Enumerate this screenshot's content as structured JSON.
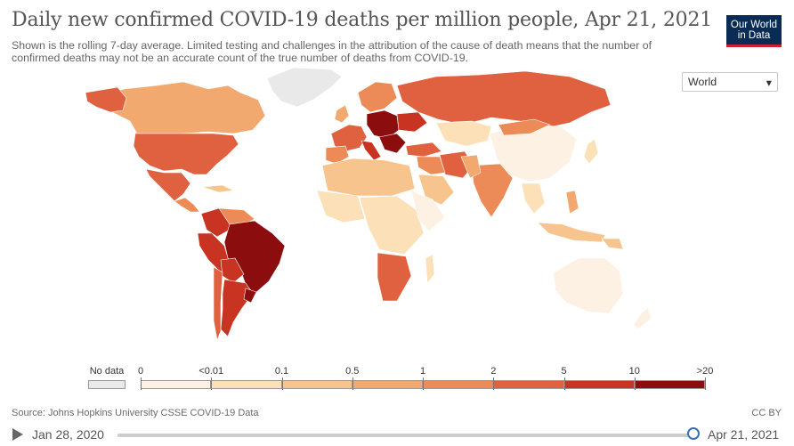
{
  "header": {
    "title": "Daily new confirmed COVID-19 deaths per million people, Apr 21, 2021",
    "subtitle": "Shown is the rolling 7-day average. Limited testing and challenges in the attribution of the cause of death means that the number of confirmed deaths may not be an accurate count of the true number of deaths from COVID-19.",
    "logo_line1": "Our World",
    "logo_line2": "in Data"
  },
  "region_select": {
    "value": "World",
    "chevron": "▾",
    "icon": "chevron-down-icon"
  },
  "legend": {
    "no_data_label": "No data",
    "no_data_color": "#e9e9e9",
    "bin_labels": [
      "0",
      "<0.01",
      "0.1",
      "0.5",
      "1",
      "2",
      "5",
      "10",
      ">20"
    ],
    "bin_colors": [
      "#fdf1e4",
      "#fbe0b8",
      "#f6c48c",
      "#f2a96f",
      "#ec8a58",
      "#e0613f",
      "#c93322",
      "#8c0d0d"
    ]
  },
  "footer": {
    "source": "Source: Johns Hopkins University CSSE COVID-19 Data",
    "license": "CC BY"
  },
  "timeline": {
    "start_label": "Jan 28, 2020",
    "end_label": "Apr 21, 2021"
  },
  "colors": {
    "bin0": "#fdf1e4",
    "bin1": "#fbe0b8",
    "bin2": "#f6c48c",
    "bin3": "#f2a96f",
    "bin4": "#ec8a58",
    "bin5": "#e0613f",
    "bin6": "#c93322",
    "bin7": "#8c0d0d",
    "nodata": "#e9e9e9"
  }
}
